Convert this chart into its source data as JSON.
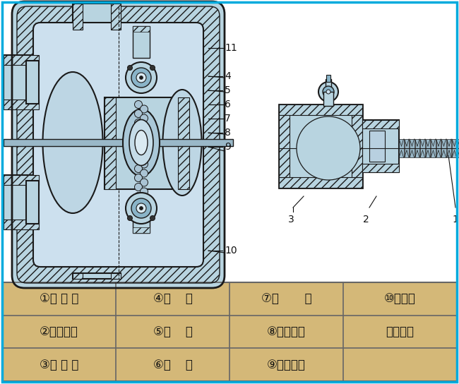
{
  "bg_color": "#ffffff",
  "border_color": "#00aadd",
  "light_blue": "#b8d4e0",
  "med_blue": "#8ab4c8",
  "dark_blue": "#5a8aaa",
  "line_color": "#1a1a1a",
  "hatch_color": "#3a5a70",
  "table_bg": "#d4b878",
  "table_line": "#666666",
  "white": "#ffffff",
  "ann_color": "#111111",
  "table_rows": [
    [
      "①进 气 口",
      "④圆    球",
      "⑦连       杆",
      "⑩泵进口"
    ],
    [
      "②配气阀体",
      "⑤球    座",
      "⑧连杆铜套",
      "⑪排气口"
    ],
    [
      "③配 气 阀",
      "⑥隔    膜",
      "⑨中间支架",
      ""
    ]
  ]
}
